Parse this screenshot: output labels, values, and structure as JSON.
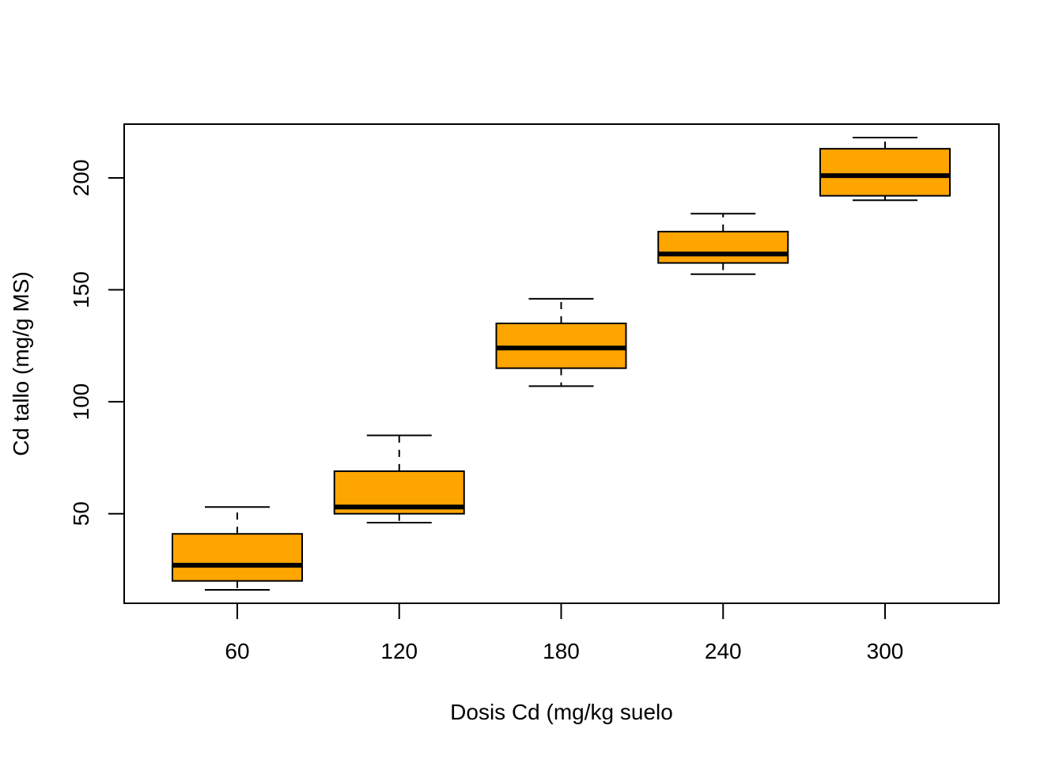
{
  "chart_data": {
    "type": "box",
    "xlabel": "Dosis Cd (mg/kg suelo",
    "ylabel": "Cd tallo (mg/g MS)",
    "categories": [
      "60",
      "120",
      "180",
      "240",
      "300"
    ],
    "y_ticks": [
      "50",
      "100",
      "150",
      "200"
    ],
    "ylim": [
      10,
      224
    ],
    "grid": false,
    "box_color": "#FFA500",
    "boxes": [
      {
        "category": "60",
        "min": 16,
        "q1": 20,
        "median": 27,
        "q3": 41,
        "max": 53
      },
      {
        "category": "120",
        "min": 46,
        "q1": 50,
        "median": 53,
        "q3": 69,
        "max": 85
      },
      {
        "category": "180",
        "min": 107,
        "q1": 115,
        "median": 124,
        "q3": 135,
        "max": 146
      },
      {
        "category": "240",
        "min": 157,
        "q1": 162,
        "median": 166,
        "q3": 176,
        "max": 184
      },
      {
        "category": "300",
        "min": 190,
        "q1": 192,
        "median": 201,
        "q3": 213,
        "max": 218
      }
    ]
  }
}
